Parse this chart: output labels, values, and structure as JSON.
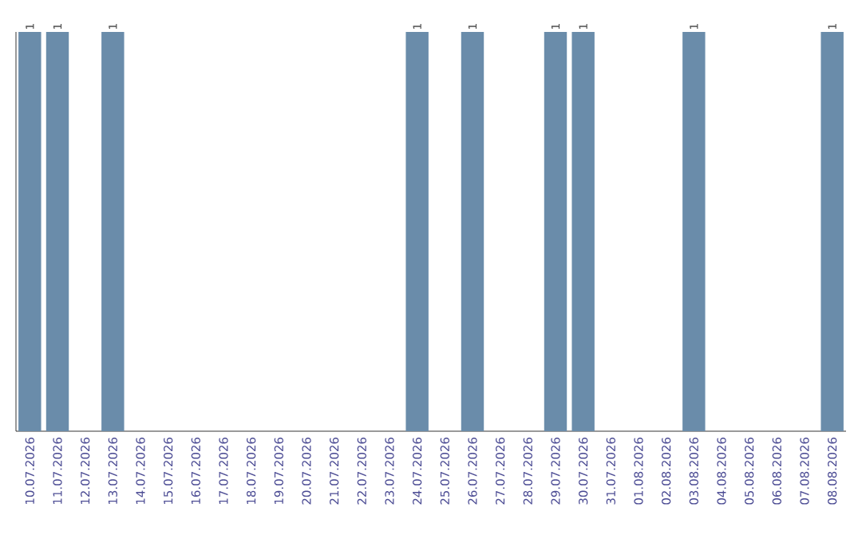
{
  "chart_data": {
    "type": "bar",
    "categories": [
      "10.07.2026",
      "11.07.2026",
      "12.07.2026",
      "13.07.2026",
      "14.07.2026",
      "15.07.2026",
      "16.07.2026",
      "17.07.2026",
      "18.07.2026",
      "19.07.2026",
      "20.07.2026",
      "21.07.2026",
      "22.07.2026",
      "23.07.2026",
      "24.07.2026",
      "25.07.2026",
      "26.07.2026",
      "27.07.2026",
      "28.07.2026",
      "29.07.2026",
      "30.07.2026",
      "31.07.2026",
      "01.08.2026",
      "02.08.2026",
      "03.08.2026",
      "04.08.2026",
      "05.08.2026",
      "06.08.2026",
      "07.08.2026",
      "08.08.2026"
    ],
    "values": [
      1,
      1,
      0,
      1,
      0,
      0,
      0,
      0,
      0,
      0,
      0,
      0,
      0,
      0,
      1,
      0,
      1,
      0,
      0,
      1,
      1,
      0,
      0,
      0,
      1,
      0,
      0,
      0,
      0,
      1
    ],
    "value_labels": [
      "1",
      "1",
      null,
      "1",
      null,
      null,
      null,
      null,
      null,
      null,
      null,
      null,
      null,
      null,
      "1",
      null,
      "1",
      null,
      null,
      "1",
      "1",
      null,
      null,
      null,
      "1",
      null,
      null,
      null,
      null,
      "1"
    ],
    "color": "#6a8caa"
  }
}
